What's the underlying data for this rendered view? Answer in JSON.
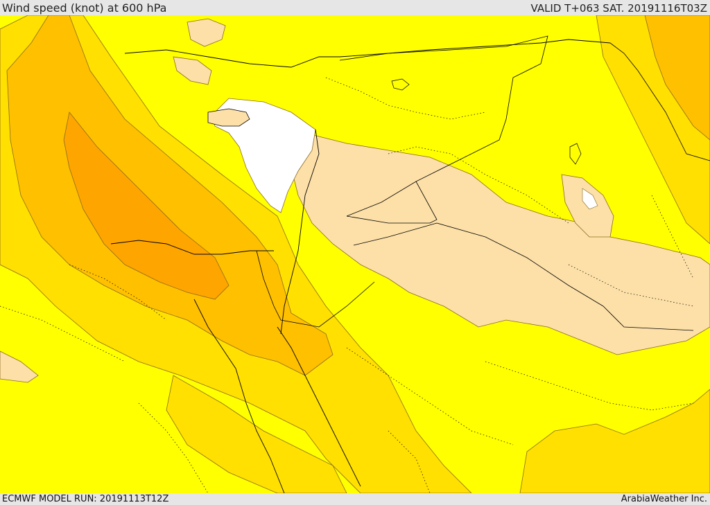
{
  "header": {
    "title": "Wind speed (knot) at 600 hPa",
    "valid": "VALID T+063 SAT. 20191116T03Z"
  },
  "footer": {
    "model_run": "ECMWF MODEL RUN: 20191113T12Z",
    "credit": "ArabiaWeather Inc."
  },
  "colors": {
    "background": "#ffff00",
    "calm": "#ffffff",
    "light": "#fde0a8",
    "moderate": "#ffe000",
    "strong": "#ffc000",
    "stronger": "#ffa500",
    "frame": "#e6e6e6"
  }
}
